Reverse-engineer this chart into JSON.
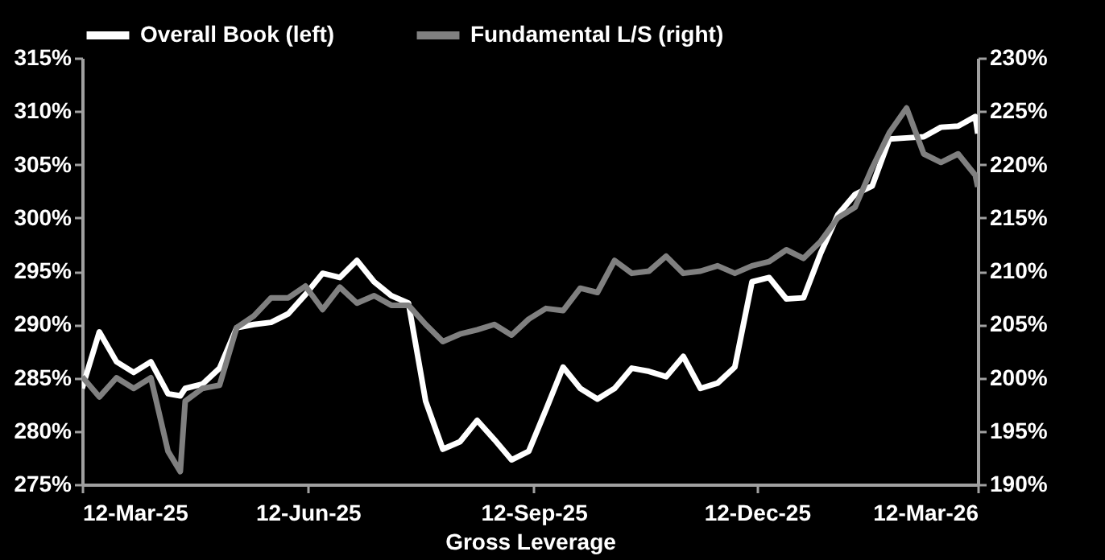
{
  "chart_data": {
    "type": "line",
    "xlabel": "Gross Leverage",
    "legend": "top",
    "x": [
      "2025-03-12",
      "2025-03-19",
      "2025-03-26",
      "2025-04-02",
      "2025-04-09",
      "2025-04-16",
      "2025-04-21",
      "2025-04-23",
      "2025-04-30",
      "2025-05-07",
      "2025-05-14",
      "2025-05-21",
      "2025-05-28",
      "2025-06-04",
      "2025-06-11",
      "2025-06-18",
      "2025-06-25",
      "2025-07-02",
      "2025-07-09",
      "2025-07-16",
      "2025-07-23",
      "2025-07-30",
      "2025-08-06",
      "2025-08-13",
      "2025-08-20",
      "2025-08-27",
      "2025-09-03",
      "2025-09-10",
      "2025-09-17",
      "2025-09-24",
      "2025-10-01",
      "2025-10-08",
      "2025-10-15",
      "2025-10-22",
      "2025-10-29",
      "2025-11-05",
      "2025-11-12",
      "2025-11-19",
      "2025-11-26",
      "2025-12-03",
      "2025-12-10",
      "2025-12-17",
      "2025-12-24",
      "2025-12-31",
      "2026-01-07",
      "2026-01-14",
      "2026-01-21",
      "2026-01-28",
      "2026-02-04",
      "2026-02-11",
      "2026-02-18",
      "2026-02-25",
      "2026-03-04",
      "2026-03-11",
      "2026-03-12"
    ],
    "series": [
      {
        "name": "Overall Book (left)",
        "color": "#ffffff",
        "values": [
          284,
          289.3,
          286.5,
          285.5,
          286.5,
          283.5,
          283.3,
          284,
          284.4,
          285.9,
          289.7,
          290,
          290.2,
          291,
          292.8,
          294.8,
          294.4,
          296,
          294,
          292.7,
          292,
          282.8,
          278.3,
          279,
          281,
          279.2,
          277.3,
          278.1,
          282,
          286,
          284,
          283,
          284,
          285.9,
          285.6,
          285.1,
          287,
          284,
          284.5,
          286,
          294,
          294.4,
          292.4,
          292.5,
          296.7,
          300.3,
          302.2,
          303,
          307.4,
          307.5,
          307.6,
          308.5,
          308.6,
          309.5,
          307.9
        ]
      },
      {
        "name": "Fundamental L/S (right)",
        "color": "#808080",
        "axis": "y2",
        "values": [
          200.1,
          198.2,
          200,
          199,
          200,
          193.1,
          191.2,
          197.8,
          199,
          199.3,
          204.7,
          205.8,
          207.5,
          207.5,
          208.6,
          206.4,
          208.5,
          207,
          207.7,
          206.8,
          206.8,
          205,
          203.4,
          204.1,
          204.5,
          205,
          204,
          205.5,
          206.5,
          206.3,
          208.4,
          208,
          211,
          209.8,
          210,
          211.4,
          209.8,
          210,
          210.5,
          209.8,
          210.5,
          210.9,
          212,
          211.2,
          212.8,
          215,
          216,
          219.7,
          223,
          225.3,
          221,
          220.2,
          221,
          219,
          217.9
        ]
      }
    ],
    "xlim": [
      "2025-03-12",
      "2026-03-12"
    ],
    "xticks": [
      {
        "value": "2025-03-12",
        "label": "12-Mar-25"
      },
      {
        "value": "2025-06-12",
        "label": "12-Jun-25"
      },
      {
        "value": "2025-09-12",
        "label": "12-Sep-25"
      },
      {
        "value": "2025-12-12",
        "label": "12-Dec-25"
      },
      {
        "value": "2026-03-12",
        "label": "12-Mar-26"
      }
    ],
    "ylim": [
      275,
      315
    ],
    "yticks": [
      {
        "value": 275,
        "label": "275%"
      },
      {
        "value": 280,
        "label": "280%"
      },
      {
        "value": 285,
        "label": "285%"
      },
      {
        "value": 290,
        "label": "290%"
      },
      {
        "value": 295,
        "label": "295%"
      },
      {
        "value": 300,
        "label": "300%"
      },
      {
        "value": 305,
        "label": "305%"
      },
      {
        "value": 310,
        "label": "310%"
      },
      {
        "value": 315,
        "label": "315%"
      }
    ],
    "y2lim": [
      190,
      230
    ],
    "y2ticks": [
      {
        "value": 190,
        "label": "190%"
      },
      {
        "value": 195,
        "label": "195%"
      },
      {
        "value": 200,
        "label": "200%"
      },
      {
        "value": 205,
        "label": "205%"
      },
      {
        "value": 210,
        "label": "210%"
      },
      {
        "value": 215,
        "label": "215%"
      },
      {
        "value": 220,
        "label": "220%"
      },
      {
        "value": 225,
        "label": "225%"
      },
      {
        "value": 230,
        "label": "230%"
      }
    ],
    "line_style": "solid"
  }
}
